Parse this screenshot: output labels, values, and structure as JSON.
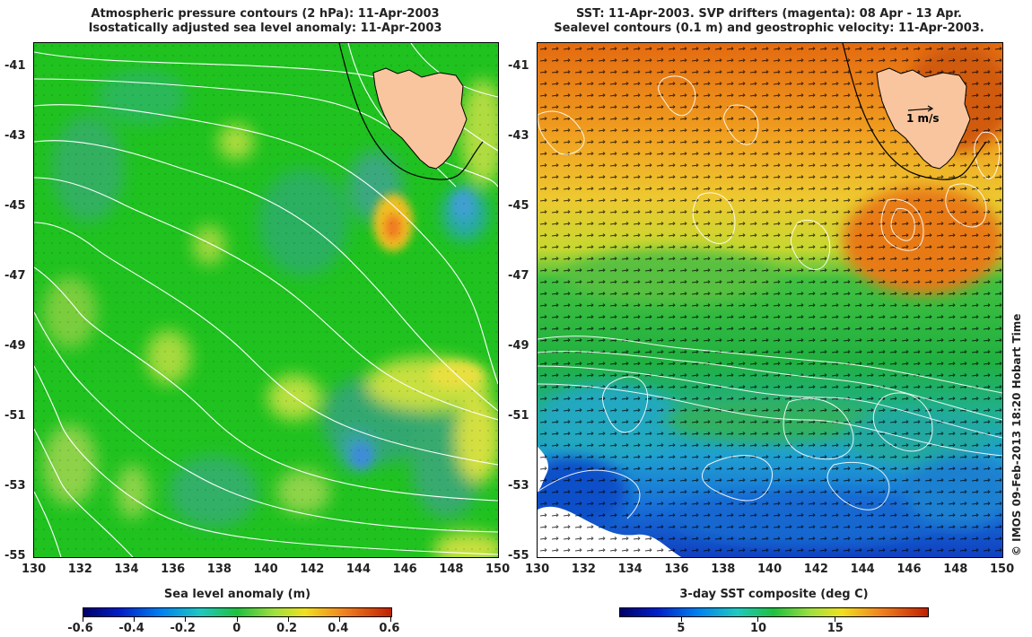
{
  "left_panel": {
    "title_line1": "Atmospheric pressure contours (2 hPa): 11-Apr-2003",
    "title_line2": "Isostatically adjusted sea level anomaly: 11-Apr-2003",
    "colorbar": {
      "label": "Sea level anomaly (m)",
      "ticks": [
        "-0.6",
        "-0.4",
        "-0.2",
        "0",
        "0.2",
        "0.4",
        "0.6"
      ],
      "range": [
        -0.6,
        0.6
      ]
    }
  },
  "right_panel": {
    "title_line1": "SST: 11-Apr-2003. SVP drifters (magenta): 08 Apr - 13 Apr.",
    "title_line2": "Sealevel contours (0.1 m) and geostrophic velocity: 11-Apr-2003.",
    "scale_label": "1 m/s",
    "colorbar": {
      "label": "3-day SST composite (deg C)",
      "ticks": [
        "5",
        "10",
        "15"
      ],
      "range": [
        1,
        21
      ]
    }
  },
  "axes": {
    "lon_ticks": [
      "130",
      "132",
      "134",
      "136",
      "138",
      "140",
      "142",
      "144",
      "146",
      "148",
      "150"
    ],
    "lat_ticks": [
      "-41",
      "-43",
      "-45",
      "-47",
      "-49",
      "-51",
      "-53",
      "-55"
    ],
    "lon_range": [
      130,
      150
    ],
    "lat_range": [
      -55,
      -40.3
    ]
  },
  "credit": "© IMOS 09-Feb-2013 18:20 Hobart Time",
  "colors": {
    "land": "#f9c59e",
    "sla_base": "#22c822",
    "sst_warm": "#e07010",
    "sst_cold": "#1060d0",
    "contour": "#ffffff"
  }
}
